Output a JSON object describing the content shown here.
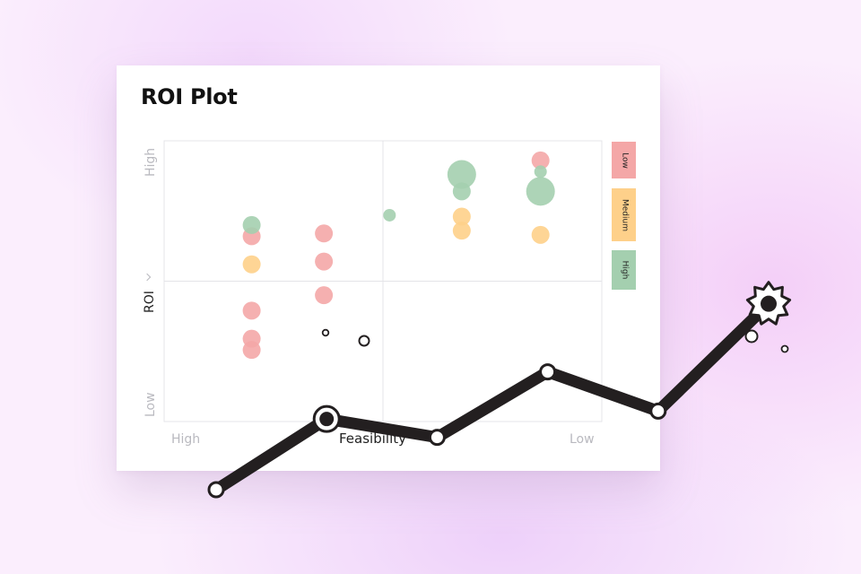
{
  "chart_data": {
    "type": "scatter",
    "title": "ROI Plot",
    "xlabel": "Feasibility",
    "ylabel": "ROI",
    "x_ticks": [
      "High",
      "Low"
    ],
    "y_ticks": [
      "Low",
      "High"
    ],
    "x_range": [
      0,
      100
    ],
    "y_range": [
      0,
      100
    ],
    "grid": "quadrants",
    "legend_placement": "right",
    "series": [
      {
        "name": "Low",
        "color": "#f4a7a7",
        "points": [
          {
            "x": 20,
            "y": 66,
            "size": 10
          },
          {
            "x": 36.5,
            "y": 67,
            "size": 10
          },
          {
            "x": 36.5,
            "y": 57,
            "size": 10
          },
          {
            "x": 20,
            "y": 39.5,
            "size": 10
          },
          {
            "x": 20,
            "y": 29.5,
            "size": 10
          },
          {
            "x": 20,
            "y": 25.5,
            "size": 10
          },
          {
            "x": 36.5,
            "y": 45,
            "size": 10
          },
          {
            "x": 86,
            "y": 93,
            "size": 10
          }
        ]
      },
      {
        "name": "Medium",
        "color": "#fed08a",
        "points": [
          {
            "x": 20,
            "y": 56,
            "size": 10
          },
          {
            "x": 68,
            "y": 73,
            "size": 10
          },
          {
            "x": 68,
            "y": 68,
            "size": 10
          },
          {
            "x": 86,
            "y": 66.5,
            "size": 10
          }
        ]
      },
      {
        "name": "High",
        "color": "#a4cfaf",
        "points": [
          {
            "x": 20,
            "y": 70,
            "size": 10
          },
          {
            "x": 51.5,
            "y": 73.5,
            "size": 7
          },
          {
            "x": 68,
            "y": 88,
            "size": 16
          },
          {
            "x": 68,
            "y": 82,
            "size": 10
          },
          {
            "x": 86,
            "y": 89,
            "size": 7
          },
          {
            "x": 86,
            "y": 82,
            "size": 16
          }
        ]
      }
    ]
  },
  "legend": [
    {
      "label": "Low",
      "color": "#f4a7a7"
    },
    {
      "label": "Medium",
      "color": "#fed08a"
    },
    {
      "label": "High",
      "color": "#a4cfaf"
    }
  ],
  "decoration": {
    "trend_color": "#231f20",
    "trend_points": [
      {
        "x": 0,
        "y": 0
      },
      {
        "x": 20,
        "y": 27
      },
      {
        "x": 40,
        "y": 20
      },
      {
        "x": 60,
        "y": 45
      },
      {
        "x": 80,
        "y": 30
      },
      {
        "x": 100,
        "y": 71
      }
    ]
  }
}
